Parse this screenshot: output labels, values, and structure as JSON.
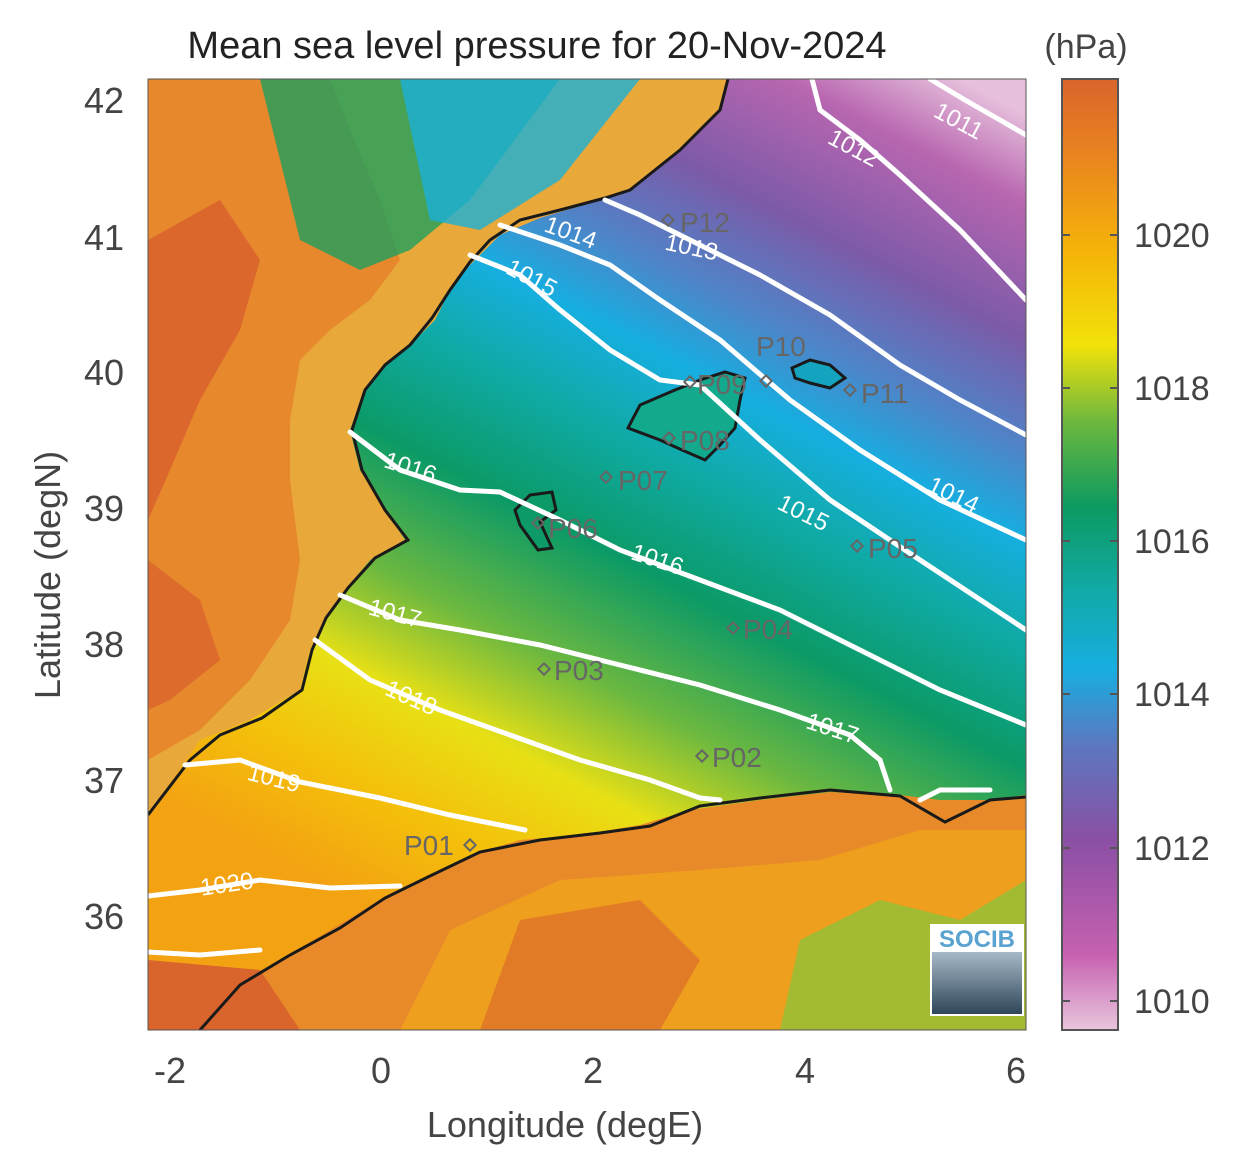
{
  "title": "Mean sea level pressure for 20-Nov-2024",
  "xlabel": "Longitude (degE)",
  "ylabel": "Latitude (degN)",
  "x_ticks": [
    "-2",
    "0",
    "2",
    "4",
    "6"
  ],
  "y_ticks": [
    "42",
    "41",
    "40",
    "39",
    "38",
    "37",
    "36"
  ],
  "colorbar": {
    "unit": "(hPa)",
    "ticks": [
      "1020",
      "1018",
      "1016",
      "1014",
      "1012",
      "1010"
    ],
    "colors": [
      "#e8c6dc",
      "#c660b0",
      "#8a4fa4",
      "#5b78c0",
      "#17aee0",
      "#12aaa8",
      "#0c9a60",
      "#6db83e",
      "#f2e20a",
      "#f5b308",
      "#e98420",
      "#d9642c"
    ]
  },
  "contour_labels": [
    "1011",
    "1012",
    "1013",
    "1014",
    "1015",
    "1016",
    "1017",
    "1018",
    "1019",
    "1020",
    "1014",
    "1015",
    "1016",
    "1017"
  ],
  "stations": [
    "P01",
    "P02",
    "P03",
    "P04",
    "P05",
    "P06",
    "P07",
    "P08",
    "P09",
    "P10",
    "P11",
    "P12"
  ],
  "logo_text": "SOCIB",
  "chart_data": {
    "type": "heatmap",
    "title": "Mean sea level pressure for 20-Nov-2024",
    "xlabel": "Longitude (degE)",
    "ylabel": "Latitude (degN)",
    "xlim": [
      -2.3,
      6.1
    ],
    "ylim": [
      35.1,
      42.2
    ],
    "colorbar_label": "(hPa)",
    "colorbar_range": [
      1009.7,
      1021.8
    ],
    "contour_levels": [
      1011,
      1012,
      1013,
      1014,
      1015,
      1016,
      1017,
      1018,
      1019,
      1020
    ],
    "stations": [
      {
        "name": "P01",
        "lon": 0.88,
        "lat": 36.5
      },
      {
        "name": "P02",
        "lon": 3.0,
        "lat": 37.15
      },
      {
        "name": "P03",
        "lon": 1.5,
        "lat": 37.8
      },
      {
        "name": "P04",
        "lon": 3.3,
        "lat": 38.1
      },
      {
        "name": "P05",
        "lon": 4.5,
        "lat": 38.7
      },
      {
        "name": "P06",
        "lon": 1.45,
        "lat": 38.87
      },
      {
        "name": "P07",
        "lon": 2.1,
        "lat": 39.2
      },
      {
        "name": "P08",
        "lon": 2.7,
        "lat": 39.5
      },
      {
        "name": "P09",
        "lon": 3.0,
        "lat": 39.9
      },
      {
        "name": "P10",
        "lon": 3.8,
        "lat": 40.0
      },
      {
        "name": "P11",
        "lon": 4.4,
        "lat": 39.85
      },
      {
        "name": "P12",
        "lon": 2.7,
        "lat": 41.1
      }
    ]
  }
}
